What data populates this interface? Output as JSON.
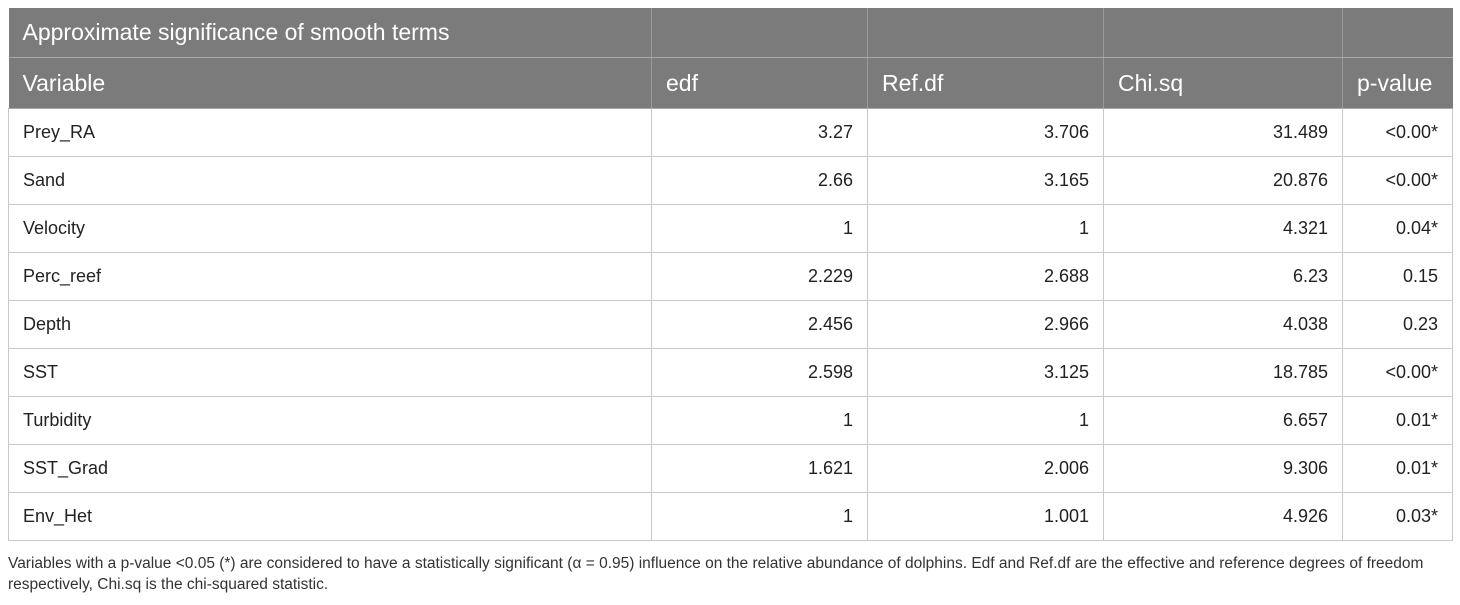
{
  "table": {
    "caption": "Approximate significance of smooth terms",
    "columns": [
      "Variable",
      "edf",
      "Ref.df",
      "Chi.sq",
      "p-value"
    ],
    "rows": [
      [
        "Prey_RA",
        "3.27",
        "3.706",
        "31.489",
        "<0.00*"
      ],
      [
        "Sand",
        "2.66",
        "3.165",
        "20.876",
        "<0.00*"
      ],
      [
        "Velocity",
        "1",
        "1",
        "4.321",
        "0.04*"
      ],
      [
        "Perc_reef",
        "2.229",
        "2.688",
        "6.23",
        "0.15"
      ],
      [
        "Depth",
        "2.456",
        "2.966",
        "4.038",
        "0.23"
      ],
      [
        "SST",
        "2.598",
        "3.125",
        "18.785",
        "<0.00*"
      ],
      [
        "Turbidity",
        "1",
        "1",
        "6.657",
        "0.01*"
      ],
      [
        "SST_Grad",
        "1.621",
        "2.006",
        "9.306",
        "0.01*"
      ],
      [
        "Env_Het",
        "1",
        "1.001",
        "4.926",
        "0.03*"
      ]
    ]
  },
  "footnote": "Variables with a p-value <0.05 (*) are considered to have a statistically significant (α = 0.95) influence on the relative abundance of dolphins. Edf and Ref.df are the effective and reference degrees of freedom respectively, Chi.sq is the chi-squared statistic."
}
